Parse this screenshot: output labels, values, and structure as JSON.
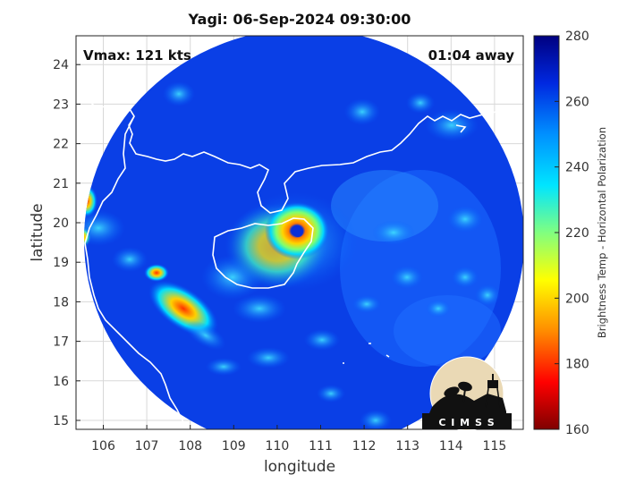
{
  "title": "Yagi: 06-Sep-2024 09:30:00",
  "info": {
    "vmax": "Vmax: 121 kts",
    "age": "01:04 away"
  },
  "axes": {
    "xlabel": "longitude",
    "ylabel": "latitude",
    "xticks": [
      "106",
      "107",
      "108",
      "109",
      "110",
      "111",
      "112",
      "113",
      "114",
      "115"
    ],
    "yticks": [
      "15",
      "16",
      "17",
      "18",
      "19",
      "20",
      "21",
      "22",
      "23",
      "24"
    ]
  },
  "colorbar": {
    "label": "Brightness Temp - Horizontal Polarization",
    "ticks": [
      "160",
      "180",
      "200",
      "220",
      "240",
      "260",
      "280"
    ],
    "colors": [
      "#7f0000",
      "#ff0000",
      "#ff8c00",
      "#ffff00",
      "#80ff80",
      "#00e5ff",
      "#0090ff",
      "#0028e0",
      "#000080"
    ]
  },
  "logo": {
    "text": "C I M S S"
  }
}
